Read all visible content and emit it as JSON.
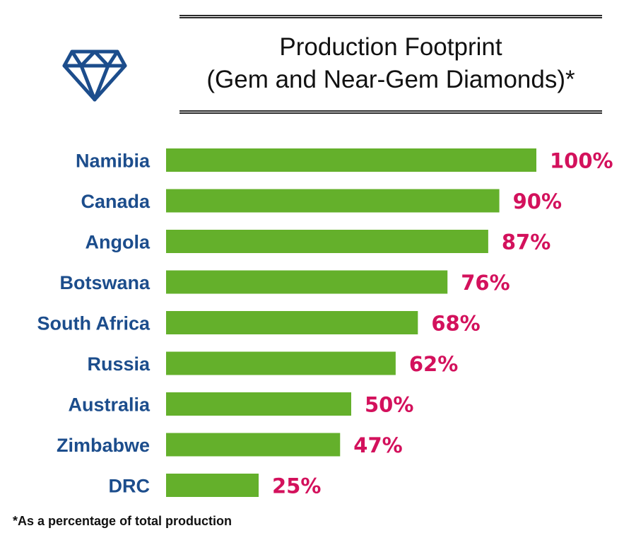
{
  "header": {
    "title_line1": "Production Footprint",
    "title_line2": "(Gem and Near-Gem Diamonds)*",
    "icon": "diamond-icon"
  },
  "footnote": "*As a percentage of total production",
  "colors": {
    "bar": "#64b02b",
    "category_label": "#1c4d8c",
    "value_label": "#d3115c",
    "icon": "#1c4d8c"
  },
  "chart_data": {
    "type": "bar",
    "orientation": "horizontal",
    "title": "Production Footprint (Gem and Near-Gem Diamonds)*",
    "categories": [
      "Namibia",
      "Canada",
      "Angola",
      "Botswana",
      "South Africa",
      "Russia",
      "Australia",
      "Zimbabwe",
      "DRC"
    ],
    "values": [
      100,
      90,
      87,
      76,
      68,
      62,
      50,
      47,
      25
    ],
    "value_labels": [
      "100%",
      "90%",
      "87%",
      "76%",
      "68%",
      "62%",
      "50%",
      "47%",
      "25%"
    ],
    "xlim": [
      0,
      100
    ],
    "grid": false,
    "legend": "none"
  }
}
